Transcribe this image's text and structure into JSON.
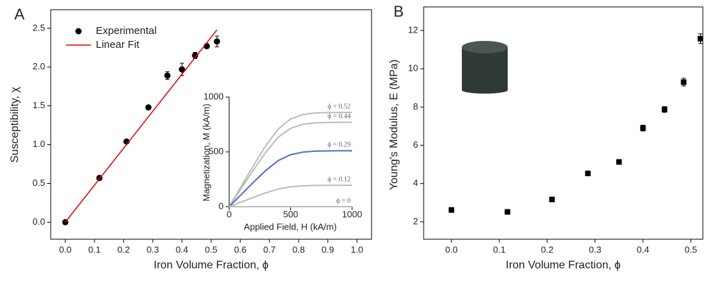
{
  "chart_data": [
    {
      "type": "scatter",
      "panel_label": "A",
      "x_label": "Iron Volume Fraction, ϕ",
      "y_label": "Susceptibility, χ",
      "xlim": [
        -0.05,
        1.05
      ],
      "ylim": [
        -0.22,
        2.74
      ],
      "box": true,
      "legend": "upper left",
      "xticks": [
        {
          "value": 0,
          "label": "0.0"
        },
        0.1,
        0.2,
        0.3,
        0.4,
        0.5,
        0.6,
        0.7,
        0.8,
        0.9,
        {
          "value": 1,
          "label": "1.0"
        }
      ],
      "yticks": [
        {
          "value": 0,
          "label": "0.0"
        },
        0.5,
        {
          "value": 1,
          "label": "1.0"
        },
        1.5,
        {
          "value": 2,
          "label": "2.0"
        },
        2.5
      ],
      "series": [
        {
          "name": "Experimental",
          "color": "#000000",
          "marker": "circle",
          "x": [
            0,
            0.117,
            0.21,
            0.285,
            0.35,
            0.4,
            0.445,
            0.485,
            0.52
          ],
          "values": [
            0,
            0.57,
            1.04,
            1.48,
            1.89,
            1.97,
            2.15,
            2.27,
            2.33
          ],
          "errors": [
            0,
            0.02,
            0.02,
            0.02,
            0.05,
            0.08,
            0.04,
            0.03,
            0.07
          ]
        },
        {
          "name": "Linear Fit",
          "color": "#e00000",
          "mode": "line",
          "x": [
            0,
            0.52
          ],
          "values": [
            0,
            2.48
          ]
        }
      ]
    },
    {
      "type": "line",
      "x_label": "Applied Field, H (kA/m)",
      "y_label": "Magnetization, M (kA/m)",
      "xlim": [
        0,
        1000
      ],
      "ylim": [
        0,
        1000
      ],
      "xticks": [
        0,
        500,
        1000
      ],
      "yticks": [
        0,
        500,
        1000
      ],
      "x": [
        0,
        100,
        200,
        300,
        400,
        500,
        600,
        700,
        800,
        900,
        1000
      ],
      "series": [
        {
          "name": "ϕ = 0.52",
          "color": "#bbbbbb",
          "values": [
            0,
            190,
            380,
            560,
            710,
            800,
            840,
            855,
            858,
            860,
            860
          ]
        },
        {
          "name": "ϕ = 0.44",
          "color": "#bbbbbb",
          "values": [
            0,
            170,
            340,
            500,
            635,
            715,
            752,
            765,
            768,
            770,
            770
          ]
        },
        {
          "name": "ϕ = 0.29",
          "color": "#4a72c0",
          "values": [
            0,
            113,
            226,
            332,
            421,
            474,
            498,
            507,
            509,
            510,
            510
          ]
        },
        {
          "name": "ϕ = 0.12",
          "color": "#bbbbbb",
          "values": [
            0,
            43,
            86,
            127,
            161,
            181,
            190,
            194,
            195,
            195,
            195
          ]
        },
        {
          "name": "ϕ = 0",
          "color": "#bbbbbb",
          "values": [
            0,
            0,
            0,
            0,
            0,
            0,
            0,
            0,
            0,
            0,
            0
          ]
        }
      ]
    },
    {
      "type": "scatter",
      "panel_label": "B",
      "x_label": "Iron Volume Fraction, ϕ",
      "y_label": "Young's Modulus, E (MPa)",
      "xlim": [
        -0.058,
        0.525
      ],
      "ylim": [
        1.09,
        13.23
      ],
      "box": true,
      "xticks": [
        {
          "value": 0,
          "label": "0.0"
        },
        0.1,
        0.2,
        0.3,
        0.4,
        0.5
      ],
      "yticks": [
        2,
        4,
        6,
        8,
        10,
        12
      ],
      "series": [
        {
          "color": "#000000",
          "marker": "square",
          "x": [
            0,
            0.117,
            0.21,
            0.285,
            0.35,
            0.4,
            0.445,
            0.485,
            0.52
          ],
          "values": [
            2.62,
            2.52,
            3.17,
            4.53,
            5.13,
            6.9,
            7.87,
            9.3,
            11.57
          ],
          "errors": [
            0.05,
            0.05,
            0.05,
            0.05,
            0.05,
            0.15,
            0.15,
            0.2,
            0.25
          ]
        }
      ]
    }
  ]
}
